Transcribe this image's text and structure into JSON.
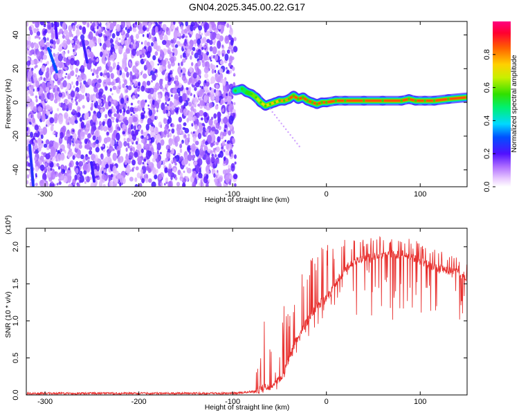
{
  "title": "GN04.2025.345.00.22.G17",
  "colors": {
    "snr_line": "#e8302e",
    "axes": "#000000",
    "background": "#ffffff"
  },
  "chart_data": [
    {
      "type": "heatmap",
      "name": "spectrogram",
      "xlabel": "Height of straight line (km)",
      "ylabel": "Frequency (Hz)",
      "xlim": [
        -320,
        150
      ],
      "ylim": [
        -50,
        48
      ],
      "xticks": [
        -300,
        -200,
        -100,
        0,
        100
      ],
      "yticks": [
        -40,
        -20,
        0,
        20,
        40
      ],
      "colorbar": {
        "label": "Normalized spectral amplitude",
        "range": [
          0,
          1
        ],
        "ticks": [
          0.0,
          0.2,
          0.4,
          0.6,
          0.8
        ],
        "tick_labels": [
          "0.0",
          "0.2",
          "0.4",
          "0.6",
          "0.8"
        ]
      },
      "noise_region_x": [
        -320,
        -97
      ],
      "ridge": {
        "x": [
          -97,
          -90,
          -85,
          -80,
          -75,
          -70,
          -65,
          -60,
          -55,
          -50,
          -45,
          -40,
          -35,
          -30,
          -25,
          -20,
          -15,
          -10,
          -5,
          0,
          10,
          20,
          40,
          60,
          80,
          88,
          95,
          105,
          115,
          130,
          150
        ],
        "y": [
          7,
          8,
          6,
          5,
          3,
          0,
          -2,
          -1,
          0,
          1,
          1,
          2,
          4,
          2,
          3,
          1,
          0,
          -1,
          0,
          0,
          1,
          1,
          1,
          1,
          1,
          2,
          1,
          1,
          1,
          2,
          3
        ],
        "amplitude": [
          0.45,
          0.5,
          0.55,
          0.6,
          0.65,
          0.7,
          0.7,
          0.75,
          0.75,
          0.8,
          0.8,
          0.85,
          0.85,
          0.85,
          0.85,
          0.85,
          0.85,
          0.9,
          0.9,
          0.9,
          0.95,
          0.95,
          0.95,
          0.95,
          0.95,
          0.9,
          0.85,
          0.85,
          0.9,
          0.85,
          0.8
        ]
      }
    },
    {
      "type": "line",
      "name": "snr",
      "xlabel": "Height of straight line (km)",
      "ylabel": "SNR (10 * v/v)",
      "scale_label": "(x10^4)",
      "xlim": [
        -320,
        150
      ],
      "ylim": [
        0,
        2.25
      ],
      "xticks": [
        -300,
        -200,
        -100,
        0,
        100
      ],
      "yticks": [
        0.0,
        0.5,
        1.0,
        1.5,
        2.0
      ],
      "ytick_labels": [
        "0.0",
        "0.5",
        "1.0",
        "1.5",
        "2.0"
      ],
      "envelope": {
        "x": [
          -320,
          -100,
          -75,
          -70,
          -65,
          -55,
          -50,
          -45,
          -40,
          -30,
          -20,
          -10,
          0,
          10,
          20,
          30,
          40,
          60,
          80,
          100,
          120,
          140,
          150
        ],
        "baseline": [
          0.02,
          0.02,
          0.05,
          0.08,
          0.1,
          0.15,
          0.2,
          0.3,
          0.5,
          0.8,
          1.0,
          1.2,
          1.3,
          1.5,
          1.7,
          1.8,
          1.85,
          1.9,
          1.9,
          1.8,
          1.7,
          1.65,
          1.6
        ],
        "spike_max": [
          0.06,
          0.06,
          0.4,
          0.55,
          1.25,
          0.3,
          0.5,
          1.25,
          1.3,
          1.75,
          1.85,
          1.9,
          2.17,
          1.95,
          2.15,
          2.1,
          2.1,
          2.15,
          2.2,
          2.05,
          1.95,
          1.85,
          1.8
        ],
        "spike_min": [
          0.0,
          0.0,
          0.0,
          0.0,
          0.0,
          0.0,
          0.0,
          0.2,
          0.4,
          0.6,
          0.75,
          0.9,
          1.0,
          1.25,
          1.1,
          1.0,
          1.0,
          1.0,
          0.95,
          1.0,
          1.0,
          0.95,
          0.9
        ]
      }
    }
  ]
}
